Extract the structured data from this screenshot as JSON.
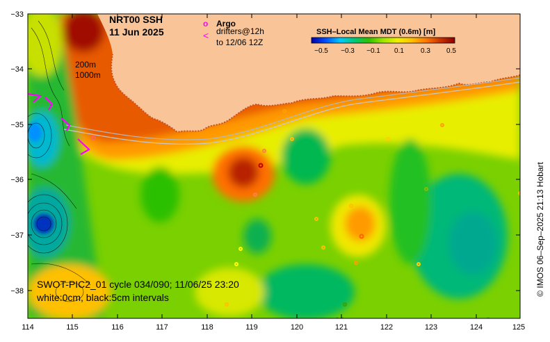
{
  "title": {
    "product": "NRT00 SSH",
    "date": "11 Jun 2025"
  },
  "legend": {
    "argo_marker": "o",
    "argo_label": "Argo",
    "drifter_marker": "<",
    "drifter_label_line1": "drifters@12h",
    "drifter_label_line2": "to 12/06 12Z",
    "isobath_200": "200m",
    "isobath_1000": "1000m"
  },
  "colorbar": {
    "title": "SSH–Local Mean MDT (0.6m) [m]",
    "ticks": [
      "−0.5",
      "−0.3",
      "−0.1",
      "0.1",
      "0.3",
      "0.5"
    ],
    "colors": [
      "#0000a8",
      "#0050ff",
      "#00c8ff",
      "#00c87a",
      "#30c000",
      "#a0e600",
      "#f0f000",
      "#ffc000",
      "#ff7800",
      "#c83200",
      "#8c0000"
    ]
  },
  "swot": {
    "line1": "SWOT-PIC2_01 cycle 034/090; 11/06/25 23:20",
    "line2": "white:0cm, black:5cm intervals"
  },
  "axes": {
    "x_ticks": [
      "114",
      "115",
      "116",
      "117",
      "118",
      "119",
      "120",
      "121",
      "122",
      "123",
      "124",
      "125"
    ],
    "y_ticks": [
      "−33",
      "−34",
      "−35",
      "−36",
      "−37",
      "−38"
    ]
  },
  "credit": "© IMOS 06–Sep–2025 21:13 Hobart"
}
